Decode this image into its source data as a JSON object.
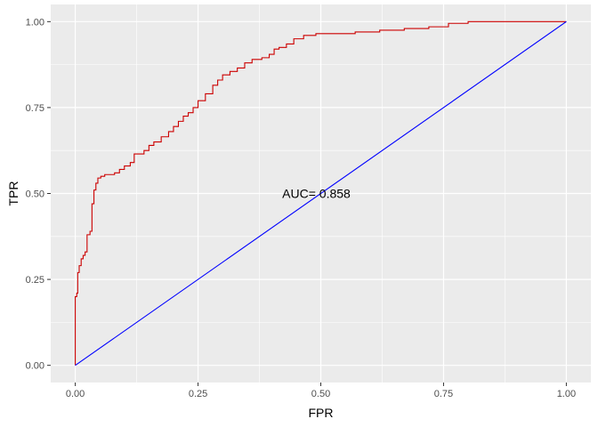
{
  "chart_data": {
    "type": "line",
    "title": "",
    "xlabel": "FPR",
    "ylabel": "TPR",
    "xlim": [
      -0.05,
      1.05
    ],
    "ylim": [
      -0.05,
      1.05
    ],
    "x_ticks": [
      0,
      0.25,
      0.5,
      0.75,
      1
    ],
    "x_tick_labels": [
      "0.00",
      "0.25",
      "0.50",
      "0.75",
      "1.00"
    ],
    "y_ticks": [
      0,
      0.25,
      0.5,
      0.75,
      1
    ],
    "y_tick_labels": [
      "0.00",
      "0.25",
      "0.50",
      "0.75",
      "1.00"
    ],
    "grid": true,
    "background": "#EBEBEB",
    "annotation": {
      "text": "AUC= 0.858",
      "x": 0.5,
      "y": 0.5
    },
    "series": [
      {
        "color": "#CC0000",
        "style": "step",
        "points": [
          [
            0.0,
            0.0
          ],
          [
            0.0,
            0.2
          ],
          [
            0.003,
            0.21
          ],
          [
            0.005,
            0.27
          ],
          [
            0.008,
            0.29
          ],
          [
            0.012,
            0.31
          ],
          [
            0.016,
            0.32
          ],
          [
            0.02,
            0.33
          ],
          [
            0.024,
            0.38
          ],
          [
            0.03,
            0.39
          ],
          [
            0.034,
            0.47
          ],
          [
            0.038,
            0.51
          ],
          [
            0.042,
            0.53
          ],
          [
            0.046,
            0.545
          ],
          [
            0.052,
            0.55
          ],
          [
            0.06,
            0.555
          ],
          [
            0.08,
            0.56
          ],
          [
            0.09,
            0.57
          ],
          [
            0.1,
            0.58
          ],
          [
            0.112,
            0.59
          ],
          [
            0.12,
            0.615
          ],
          [
            0.14,
            0.625
          ],
          [
            0.15,
            0.64
          ],
          [
            0.16,
            0.65
          ],
          [
            0.175,
            0.665
          ],
          [
            0.19,
            0.68
          ],
          [
            0.2,
            0.695
          ],
          [
            0.21,
            0.71
          ],
          [
            0.22,
            0.725
          ],
          [
            0.23,
            0.735
          ],
          [
            0.24,
            0.75
          ],
          [
            0.25,
            0.77
          ],
          [
            0.265,
            0.79
          ],
          [
            0.28,
            0.815
          ],
          [
            0.29,
            0.83
          ],
          [
            0.3,
            0.845
          ],
          [
            0.315,
            0.855
          ],
          [
            0.33,
            0.865
          ],
          [
            0.345,
            0.88
          ],
          [
            0.36,
            0.89
          ],
          [
            0.38,
            0.895
          ],
          [
            0.395,
            0.905
          ],
          [
            0.405,
            0.92
          ],
          [
            0.415,
            0.925
          ],
          [
            0.43,
            0.935
          ],
          [
            0.445,
            0.95
          ],
          [
            0.465,
            0.96
          ],
          [
            0.49,
            0.965
          ],
          [
            0.53,
            0.965
          ],
          [
            0.57,
            0.97
          ],
          [
            0.62,
            0.975
          ],
          [
            0.67,
            0.98
          ],
          [
            0.72,
            0.985
          ],
          [
            0.76,
            0.995
          ],
          [
            0.8,
            1.0
          ],
          [
            1.0,
            1.0
          ]
        ]
      },
      {
        "color": "#0000FF",
        "style": "line",
        "points": [
          [
            0,
            0
          ],
          [
            1,
            1
          ]
        ]
      }
    ]
  }
}
